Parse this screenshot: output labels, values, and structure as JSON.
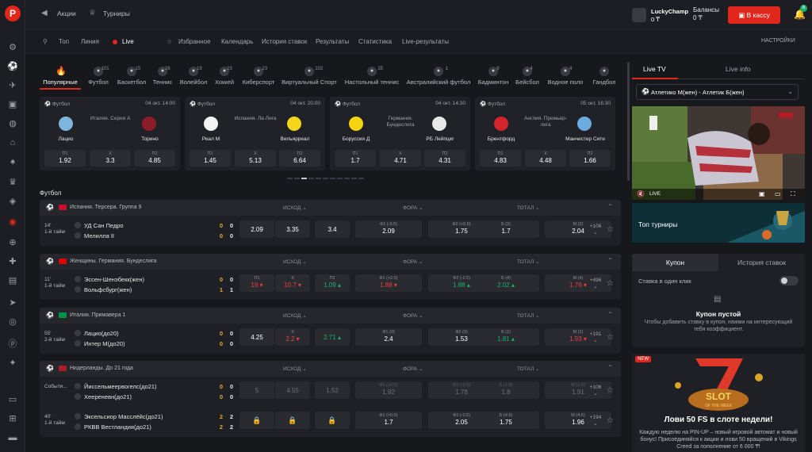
{
  "topbar": {
    "promos": "Акции",
    "tournaments": "Турниры",
    "user_name": "LuckyChamp",
    "user_balance": "0 ₸",
    "balances_label": "Балансы",
    "balances_value": "0 ₸",
    "cashier_label": "В кассу",
    "notif_count": "8"
  },
  "subnav": {
    "top": "Топ",
    "line": "Линия",
    "live": "Live",
    "items": [
      "Избранное",
      "Календарь",
      "История ставок",
      "Результаты",
      "Статистика",
      "Live-результаты"
    ],
    "settings": "НАСТРОЙКИ"
  },
  "sports": [
    {
      "label": "Популярные",
      "count": ""
    },
    {
      "label": "Футбол",
      "count": "101"
    },
    {
      "label": "Баскетбол",
      "count": "15"
    },
    {
      "label": "Теннис",
      "count": "26"
    },
    {
      "label": "Волейбол",
      "count": "19"
    },
    {
      "label": "Хоккей",
      "count": "23"
    },
    {
      "label": "Киберспорт",
      "count": "23"
    },
    {
      "label": "Виртуальный Спорт",
      "count": "102"
    },
    {
      "label": "Настольный теннис",
      "count": "35"
    },
    {
      "label": "Австралийский футбол",
      "count": "1"
    },
    {
      "label": "Бадминтон",
      "count": "9"
    },
    {
      "label": "Бейсбол",
      "count": "4"
    },
    {
      "label": "Водное поло",
      "count": "4"
    },
    {
      "label": "Гандбол",
      "count": ""
    }
  ],
  "featured": [
    {
      "sport": "Футбол",
      "date": "04 окт. 14:00",
      "league": "Италия. Серия А",
      "home": "Лацио",
      "away": "Торино",
      "o1": "1.92",
      "ox": "3.3",
      "o2": "4.85",
      "home_color": "#7fb6e0",
      "away_color": "#8b1d2a"
    },
    {
      "sport": "Футбол",
      "date": "04 окт. 20:00",
      "league": "Испания. Ла Лига",
      "home": "Реал М",
      "away": "Вильярреал",
      "o1": "1.45",
      "ox": "5.13",
      "o2": "6.64",
      "home_color": "#f3f3f3",
      "away_color": "#f3d61a"
    },
    {
      "sport": "Футбол",
      "date": "04 окт. 14:30",
      "league": "Германия. Бундеслига",
      "home": "Боруссия Д",
      "away": "РБ Лейпциг",
      "o1": "1.7",
      "ox": "4.71",
      "o2": "4.31",
      "home_color": "#f5d30f",
      "away_color": "#e8e8e8"
    },
    {
      "sport": "Футбол",
      "date": "05 окт. 16:30",
      "league": "Англия. Премьер-лига",
      "home": "Брентфорд",
      "away": "Манчестер Сити",
      "o1": "4.83",
      "ox": "4.48",
      "o2": "1.66",
      "home_color": "#d3242b",
      "away_color": "#6cabdd"
    }
  ],
  "odds_labels": {
    "p1": "П1",
    "x": "Х",
    "p2": "П2"
  },
  "section_title": "Футбол",
  "columns": {
    "result": "ИСХОД",
    "handicap": "ФОРА",
    "total": "ТОТАЛ"
  },
  "groups": [
    {
      "name": "Испания. Терсера. Группа 9",
      "flag": "#c8102e",
      "rows": [
        {
          "time1": "14'",
          "time2": "1-й тайм",
          "home": "УД Сан Педро",
          "away": "Мелилла II",
          "s1h": "0",
          "s1a": "0",
          "s2h": "0",
          "s2a": "0",
          "odds": [
            {
              "k": "",
              "v": "2.09"
            },
            {
              "k": "",
              "v": "3.35"
            },
            {
              "k": "",
              "v": "3.4"
            },
            {
              "k": "Ф1 (-0.5)",
              "v": "2.09"
            },
            {
              "k": "Ф2 (+0.5)",
              "v": "1.75"
            },
            {
              "k": "Б (2)",
              "v": "1.7"
            },
            {
              "k": "М (2)",
              "v": "2.04"
            }
          ],
          "more": "+106"
        }
      ]
    },
    {
      "name": "Женщины. Германия. Бундеслига",
      "flag": "#dd0000",
      "rows": [
        {
          "time1": "11'",
          "time2": "1-й тайм",
          "home": "Эссен-Шенэбекк(жен)",
          "away": "Вольфсбург(жен)",
          "s1h": "0",
          "s1a": "1",
          "s2h": "0",
          "s2a": "1",
          "odds": [
            {
              "k": "П1",
              "v": "19",
              "d": "dn"
            },
            {
              "k": "Х",
              "v": "10.7",
              "d": "dn"
            },
            {
              "k": "П2",
              "v": "1.09",
              "d": "up"
            },
            {
              "k": "Ф1 (+2.5)",
              "v": "1.88",
              "d": "dn"
            },
            {
              "k": "Ф2 (-2.5)",
              "v": "1.88",
              "d": "up"
            },
            {
              "k": "Б (4)",
              "v": "2.02",
              "d": "up"
            },
            {
              "k": "М (4)",
              "v": "1.76",
              "d": "dn"
            }
          ],
          "more": "+496"
        }
      ]
    },
    {
      "name": "Италия. Примавера 1",
      "flag": "#009246",
      "rows": [
        {
          "time1": "55'",
          "time2": "2-й тайм",
          "home": "Лацио(до20)",
          "away": "Интер М(до20)",
          "s1h": "0",
          "s1a": "0",
          "s2h": "0",
          "s2a": "0",
          "odds": [
            {
              "k": "",
              "v": "4.25"
            },
            {
              "k": "Х",
              "v": "2.2",
              "d": "dn"
            },
            {
              "k": "",
              "v": "2.71",
              "d": "up"
            },
            {
              "k": "Ф1 (0)",
              "v": "2.4"
            },
            {
              "k": "Ф2 (0)",
              "v": "1.53"
            },
            {
              "k": "Б (1)",
              "v": "1.81",
              "d": "up"
            },
            {
              "k": "М (1)",
              "v": "1.93",
              "d": "dn"
            }
          ],
          "more": "+191"
        }
      ]
    },
    {
      "name": "Нидерланды. До 21 года",
      "flag": "#ae1c28",
      "rows": [
        {
          "time1": "Событи...",
          "time2": "",
          "home": "Йиссельмеервогелс(до21)",
          "away": "Хеереневн(до21)",
          "s1h": "0",
          "s1a": "0",
          "s2h": "0",
          "s2a": "0",
          "dim": true,
          "odds": [
            {
              "k": "",
              "v": "5"
            },
            {
              "k": "",
              "v": "4.55"
            },
            {
              "k": "",
              "v": "1.52"
            },
            {
              "k": "Ф1 (+0.5)",
              "v": "1.92"
            },
            {
              "k": "Ф2 (-0.5)",
              "v": "1.78"
            },
            {
              "k": "Б (1.5)",
              "v": "1.8"
            },
            {
              "k": "М (1.5)",
              "v": "1.91"
            }
          ],
          "more": "+106"
        },
        {
          "time1": "40'",
          "time2": "1-й тайм",
          "home": "Эксельсиор Масслёйс(до21)",
          "away": "РКВВ Вестландия(до21)",
          "s1h": "2",
          "s1a": "2",
          "s2h": "2",
          "s2a": "2",
          "odds": [
            {
              "k": "",
              "v": "🔒",
              "lock": true
            },
            {
              "k": "",
              "v": "🔒",
              "lock": true
            },
            {
              "k": "",
              "v": "🔒",
              "lock": true
            },
            {
              "k": "Ф1 (+0.5)",
              "v": "1.7"
            },
            {
              "k": "Ф2 (-0.5)",
              "v": "2.05"
            },
            {
              "k": "Б (4.5)",
              "v": "1.75"
            },
            {
              "k": "М (4.5)",
              "v": "1.96"
            }
          ],
          "more": "+194"
        }
      ]
    }
  ],
  "right": {
    "tab_tv": "Live TV",
    "tab_info": "Live info",
    "match": "Атлетико М(жен) - Атлетик Б(жен)",
    "live_label": "LIVE",
    "top_tournaments": "Топ турниры",
    "coupon_tab": "Купон",
    "history_tab": "История ставок",
    "one_click": "Ставка в один клик",
    "empty_title": "Купон пустой",
    "empty_desc": "Чтобы добавить ставку в купон, нажми на интересующий тебя коэффициент.",
    "promo_new": "NEW",
    "promo_title": "Лови 50 FS в слоте недели!",
    "promo_desc": "Каждую неделю на PIN-UP – новый игровой автомат и новый бонус! Присоединяйся к акции и лови 50 вращений в Vikings Creed за пополнение от 6 000 ₸!",
    "slot_word1": "SLOT",
    "slot_word2": "OF THE WEEK"
  },
  "rail_icons": [
    "settings-icon",
    "football-icon",
    "rocket-icon",
    "tv-icon",
    "basketball-icon",
    "casino-icon",
    "cards-icon",
    "trophy-icon",
    "livecasino-icon",
    "poker-icon",
    "gamepad-icon",
    "news-icon",
    "aviator-icon",
    "help-icon",
    "pinup-icon",
    "gift-icon"
  ]
}
